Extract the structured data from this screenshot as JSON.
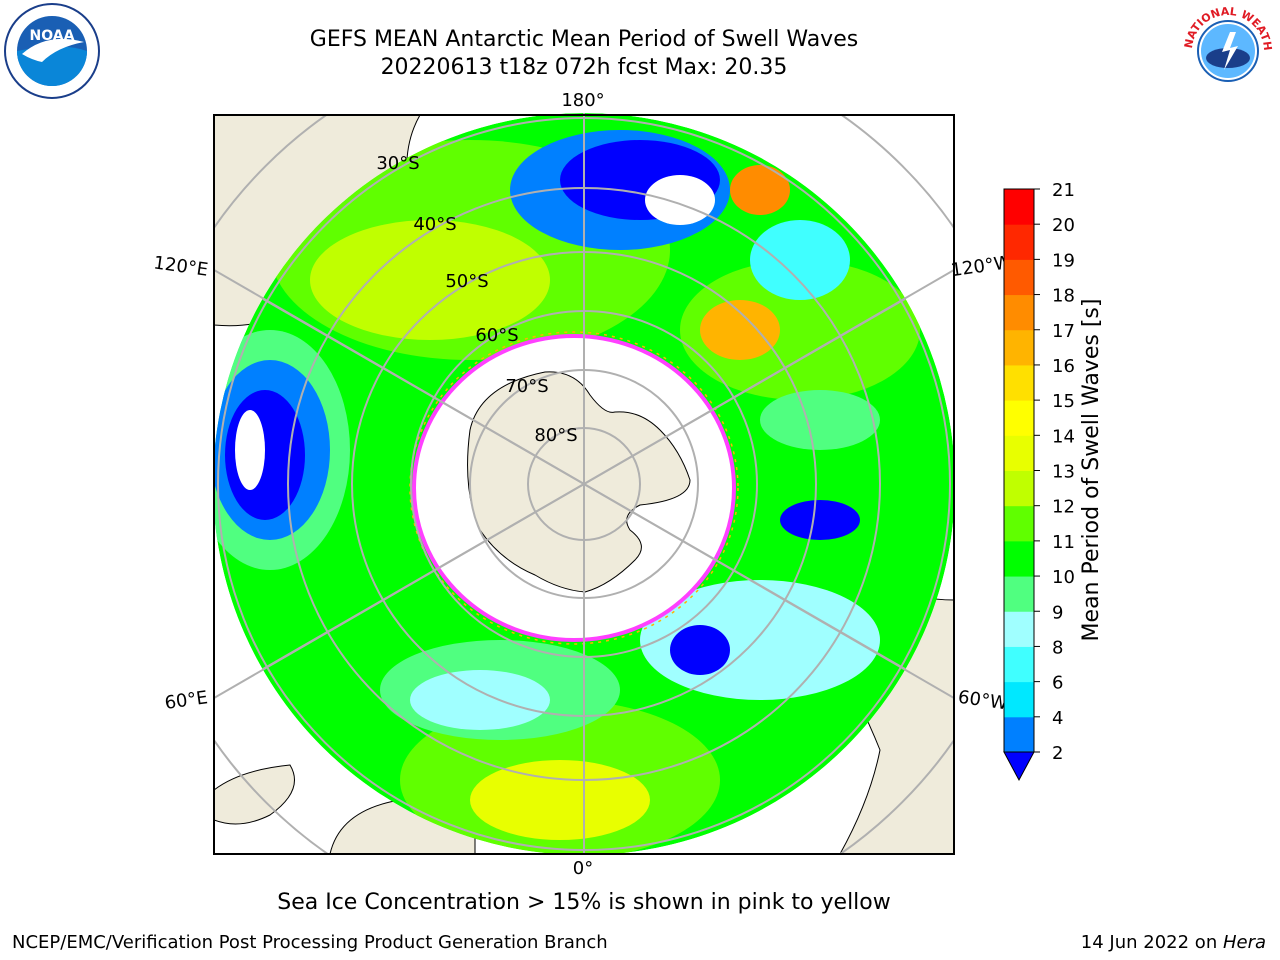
{
  "header": {
    "title_line1": "GEFS MEAN Antarctic Mean Period of Swell Waves",
    "title_line2": "20220613 t18z 072h fcst   Max: 20.35"
  },
  "logos": {
    "left": {
      "icon": "noaa-logo",
      "text": "NOAA"
    },
    "right": {
      "icon": "national-weather-service-logo",
      "text": "NATIONAL WEATHER SERVICE"
    }
  },
  "map": {
    "projection": "south-polar-stereographic",
    "longitude_labels": [
      "180°",
      "120°E",
      "120°W",
      "60°E",
      "60°W",
      "0°"
    ],
    "latitude_labels": [
      "30°S",
      "40°S",
      "50°S",
      "60°S",
      "70°S",
      "80°S"
    ],
    "colors": {
      "land": "#efebdb",
      "sea_ice": "#ffffff",
      "ice_edge": "#ff40ff",
      "grid": "#b0b0b0"
    }
  },
  "colorbar": {
    "label": "Mean Period of Swell Waves [s]",
    "ticks": [
      "2",
      "4",
      "6",
      "8",
      "9",
      "10",
      "11",
      "12",
      "13",
      "14",
      "15",
      "16",
      "17",
      "18",
      "19",
      "20",
      "21"
    ],
    "colors": [
      "#0000ff",
      "#0080ff",
      "#00e8ff",
      "#40ffff",
      "#a0ffff",
      "#50ff80",
      "#00ff00",
      "#60ff00",
      "#c0ff00",
      "#e8ff00",
      "#ffff00",
      "#ffe000",
      "#ffb400",
      "#ff8c00",
      "#ff5a00",
      "#ff2800",
      "#ff0000"
    ],
    "under_color": "#0000ff"
  },
  "note": "Sea Ice Concentration > 15% is shown in pink to yellow",
  "footer": {
    "left": "NCEP/EMC/Verification Post Processing Product Generation Branch",
    "right_date": "14 Jun 2022 on ",
    "right_host": "Hera"
  }
}
